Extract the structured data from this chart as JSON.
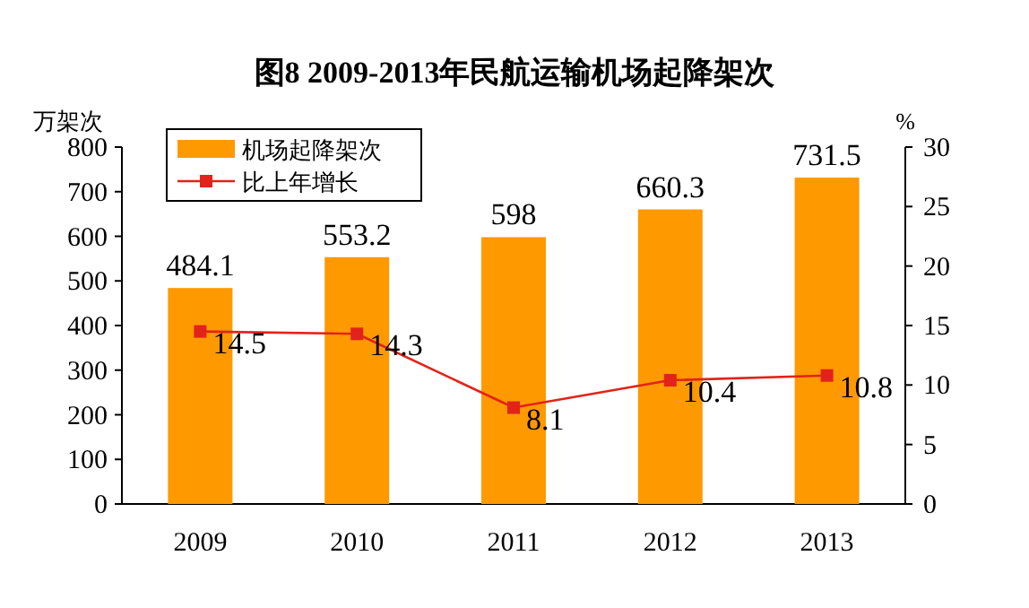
{
  "chart_data": {
    "type": "bar",
    "title": "图8 2009-2013年民航运输机场起降架次",
    "ylabel": "万架次",
    "y2label": "%",
    "categories": [
      "2009",
      "2010",
      "2011",
      "2012",
      "2013"
    ],
    "series": [
      {
        "name": "机场起降架次",
        "color": "#ff9900",
        "values": [
          484.1,
          553.2,
          598,
          660.3,
          731.5
        ]
      },
      {
        "name": "比上年增长",
        "type": "line",
        "axis": "y2",
        "color": "#e2231a",
        "values": [
          14.5,
          14.3,
          8.1,
          10.4,
          10.8
        ]
      }
    ],
    "ylim": [
      0,
      800
    ],
    "yticks": [
      0,
      100,
      200,
      300,
      400,
      500,
      600,
      700,
      800
    ],
    "y2lim": [
      0,
      30
    ],
    "y2ticks": [
      0,
      5,
      10,
      15,
      20,
      25,
      30
    ],
    "data_labels": true,
    "legend": "top left",
    "grid": false,
    "marker": "square",
    "line_style": "solid"
  }
}
